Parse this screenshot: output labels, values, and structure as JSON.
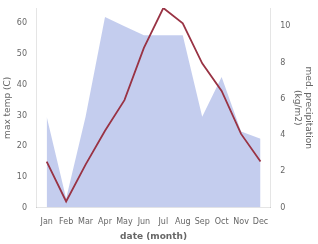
{
  "chart_data": {
    "type": "line",
    "xlabel": "date (month)",
    "ylabel": "max temp (C)",
    "y2label": "med. precipitation\n(kg/m2)",
    "categories": [
      "Jan",
      "Feb",
      "Mar",
      "Apr",
      "May",
      "Jun",
      "Jul",
      "Aug",
      "Sep",
      "Oct",
      "Nov",
      "Dec"
    ],
    "series": [
      {
        "type": "area",
        "axis": "y2",
        "color": "#b0bce8",
        "values": [
          5.0,
          0.5,
          5.0,
          10.5,
          10.0,
          9.5,
          9.5,
          9.5,
          5.0,
          7.2,
          4.2,
          3.8
        ]
      },
      {
        "type": "line",
        "color": "#993344",
        "values": [
          15,
          2,
          14,
          25,
          35,
          52,
          65,
          60,
          47,
          38,
          24,
          15
        ]
      }
    ],
    "ylim": [
      0,
      65
    ],
    "yticks": [
      0,
      10,
      20,
      30,
      40,
      50,
      60
    ],
    "y2lim": [
      0,
      11
    ],
    "y2ticks": [
      0,
      2,
      4,
      6,
      8,
      10
    ],
    "grid": false
  }
}
